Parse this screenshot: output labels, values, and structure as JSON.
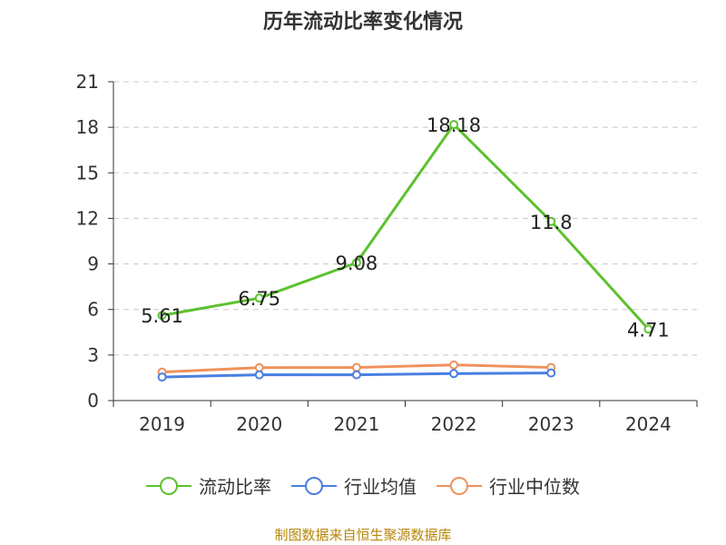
{
  "chart_data": {
    "type": "line",
    "title": "历年流动比率变化情况",
    "categories": [
      "2019",
      "2020",
      "2021",
      "2022",
      "2023",
      "2024"
    ],
    "ylim": [
      0,
      21
    ],
    "yticks": [
      0,
      3,
      6,
      9,
      12,
      15,
      18,
      21
    ],
    "grid": true,
    "legend_position": "bottom",
    "series": [
      {
        "name": "流动比率",
        "color": "#5dc12e",
        "values": [
          5.61,
          6.75,
          9.08,
          18.18,
          11.8,
          4.71
        ],
        "labels": [
          "5.61",
          "6.75",
          "9.08",
          "18.18",
          "11.8",
          "4.71"
        ]
      },
      {
        "name": "行业均值",
        "color": "#4a7fe0",
        "values": [
          1.55,
          1.7,
          1.7,
          1.78,
          1.82,
          null
        ]
      },
      {
        "name": "行业中位数",
        "color": "#f0915c",
        "values": [
          1.88,
          2.17,
          2.18,
          2.35,
          2.18,
          null
        ]
      }
    ]
  },
  "source_text": "制图数据来自恒生聚源数据库"
}
